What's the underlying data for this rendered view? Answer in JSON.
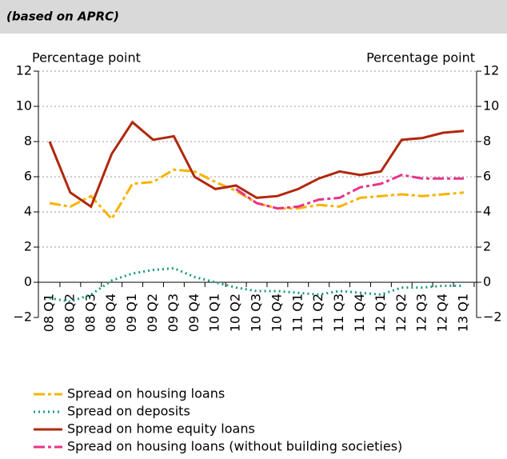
{
  "chart_data": {
    "type": "line",
    "subtitle": "(based on APRC)",
    "y_label": "Percentage point",
    "y2_label": "Percentage point",
    "categories": [
      "08 Q1",
      "08 Q2",
      "08 Q3",
      "08 Q4",
      "09 Q1",
      "09 Q2",
      "09 Q3",
      "09 Q4",
      "10 Q1",
      "10 Q2",
      "10 Q3",
      "10 Q4",
      "11 Q1",
      "11 Q2",
      "11 Q3",
      "11 Q4",
      "12 Q1",
      "12 Q2",
      "12 Q3",
      "12 Q4",
      "13 Q1"
    ],
    "series": [
      {
        "name": "Spread on housing loans",
        "color": "#f5b400",
        "dash": "14 4 4 4",
        "values": [
          4.5,
          4.3,
          4.9,
          3.6,
          5.6,
          5.7,
          6.4,
          6.3,
          5.7,
          5.2,
          4.5,
          4.2,
          4.2,
          4.4,
          4.3,
          4.8,
          4.9,
          5.0,
          4.9,
          5.0,
          5.1
        ]
      },
      {
        "name": "Spread on deposits",
        "color": "#1a9a7a",
        "dash": "2 4",
        "values": [
          -0.9,
          -1.1,
          -0.7,
          0.1,
          0.5,
          0.7,
          0.8,
          0.3,
          0.0,
          -0.3,
          -0.5,
          -0.5,
          -0.6,
          -0.7,
          -0.5,
          -0.6,
          -0.7,
          -0.3,
          -0.3,
          -0.2,
          -0.2
        ]
      },
      {
        "name": "Spread on home equity loans",
        "color": "#b0280e",
        "dash": "none",
        "values": [
          8.0,
          5.1,
          4.3,
          7.3,
          9.1,
          8.1,
          8.3,
          6.0,
          5.3,
          5.5,
          4.8,
          4.9,
          5.3,
          5.9,
          6.3,
          6.1,
          6.3,
          8.1,
          8.2,
          8.5,
          8.6
        ]
      },
      {
        "name": "Spread on housing loans (without building societies)",
        "color": "#e8338a",
        "dash": "14 4 4 4",
        "values": [
          null,
          null,
          null,
          null,
          null,
          null,
          null,
          null,
          null,
          5.3,
          4.5,
          4.2,
          4.3,
          4.7,
          4.8,
          5.4,
          5.6,
          6.1,
          5.9,
          5.9,
          5.9
        ]
      }
    ],
    "ylim": [
      -2,
      12
    ],
    "yticks": [
      {
        "value": -2,
        "label": "−2"
      },
      0,
      2,
      4,
      6,
      8,
      10,
      12
    ],
    "y2lim": [
      -2,
      12
    ],
    "y2ticks": [
      {
        "value": -2,
        "label": "−2"
      },
      0,
      2,
      4,
      6,
      8,
      10,
      12
    ],
    "grid": true
  }
}
